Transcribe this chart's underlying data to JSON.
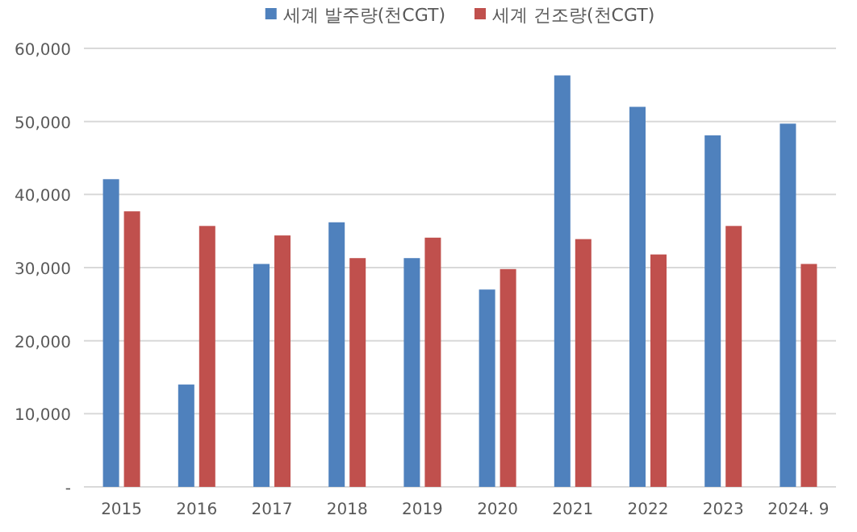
{
  "chart_data": {
    "type": "bar",
    "categories": [
      "2015",
      "2016",
      "2017",
      "2018",
      "2019",
      "2020",
      "2021",
      "2022",
      "2023",
      "2024. 9"
    ],
    "series": [
      {
        "name": "세계 발주량(천CGT)",
        "color": "#4f81bd",
        "values": [
          42100,
          14000,
          30500,
          36200,
          31300,
          27000,
          56300,
          52000,
          48100,
          49700
        ]
      },
      {
        "name": "세계 건조량(천CGT)",
        "color": "#c0504d",
        "values": [
          37700,
          35700,
          34400,
          31300,
          34100,
          29800,
          33900,
          31800,
          35700,
          30500
        ]
      }
    ],
    "ylim": [
      0,
      60000
    ],
    "yticks": [
      {
        "value": 0,
        "label": "-"
      },
      {
        "value": 10000,
        "label": "10,000"
      },
      {
        "value": 20000,
        "label": "20,000"
      },
      {
        "value": 30000,
        "label": "30,000"
      },
      {
        "value": 40000,
        "label": "40,000"
      },
      {
        "value": 50000,
        "label": "50,000"
      },
      {
        "value": 60000,
        "label": "60,000"
      }
    ],
    "grid": "y",
    "legend": "top"
  }
}
